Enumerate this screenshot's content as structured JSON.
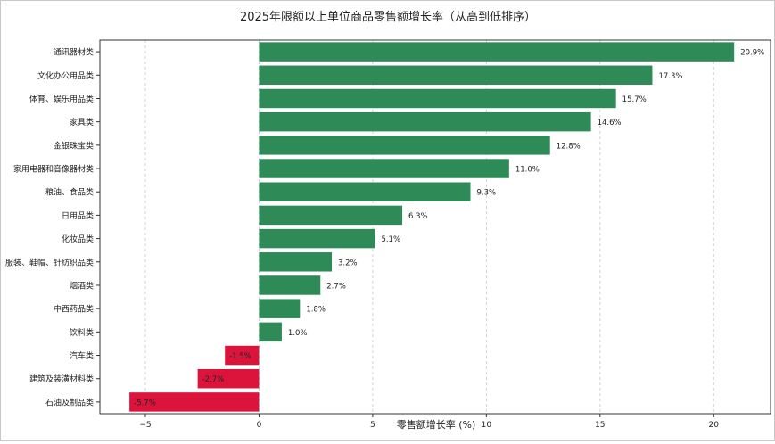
{
  "chart_data": {
    "type": "bar",
    "orientation": "horizontal",
    "title": "2025年限额以上单位商品零售额增长率（从高到低排序）",
    "xlabel": "零售额增长率 (%)",
    "ylabel": "",
    "xlim": [
      -7,
      22.5
    ],
    "xticks": [
      -5,
      0,
      5,
      10,
      15,
      20
    ],
    "xtick_labels": [
      "−5",
      "0",
      "5",
      "10",
      "15",
      "20"
    ],
    "grid": "vertical-dashed",
    "positive_color": "#2e8b57",
    "negative_color": "#dc143c",
    "categories": [
      "通讯器材类",
      "文化办公用品类",
      "体育、娱乐用品类",
      "家具类",
      "金银珠宝类",
      "家用电器和音像器材类",
      "粮油、食品类",
      "日用品类",
      "化妆品类",
      "服装、鞋帽、针纺织品类",
      "烟酒类",
      "中西药品类",
      "饮料类",
      "汽车类",
      "建筑及装潢材料类",
      "石油及制品类"
    ],
    "values": [
      20.9,
      17.3,
      15.7,
      14.6,
      12.8,
      11.0,
      9.3,
      6.3,
      5.1,
      3.2,
      2.7,
      1.8,
      1.0,
      -1.5,
      -2.7,
      -5.7
    ],
    "value_labels": [
      "20.9%",
      "17.3%",
      "15.7%",
      "14.6%",
      "12.8%",
      "11.0%",
      "9.3%",
      "6.3%",
      "5.1%",
      "3.2%",
      "2.7%",
      "1.8%",
      "1.0%",
      "-1.5%",
      "-2.7%",
      "-5.7%"
    ]
  }
}
